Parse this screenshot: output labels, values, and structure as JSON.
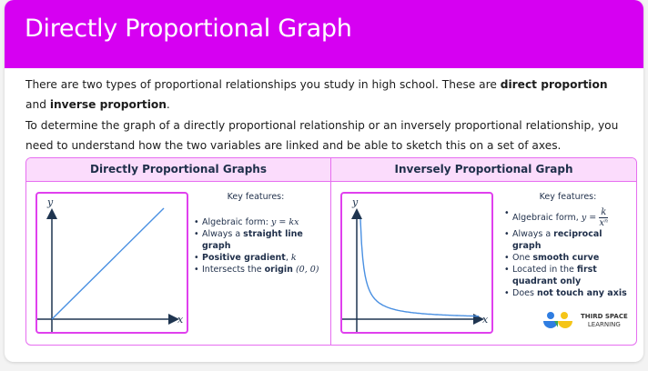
{
  "header": {
    "title": "Directly Proportional Graph"
  },
  "intro": [
    [
      {
        "t": "There are two types of proportional relationships you study in high school. These are "
      },
      {
        "t": "direct proportion",
        "b": true
      },
      {
        "t": " and "
      },
      {
        "t": "inverse proportion",
        "b": true
      },
      {
        "t": "."
      }
    ],
    [
      {
        "t": "To determine the graph of a directly proportional relationship or an inversely proportional relationship, you need to understand how the two variables are linked and be able to sketch this on a set of axes."
      }
    ]
  ],
  "direct": {
    "title": "Directly Proportional Graphs",
    "axis_x": "x",
    "axis_y": "y",
    "key_title": "Key features:",
    "features": [
      [
        {
          "t": "Algebraic form: "
        },
        {
          "t": "y = kx",
          "m": true
        }
      ],
      [
        {
          "t": "Always a "
        },
        {
          "t": "straight line graph",
          "b": true
        }
      ],
      [
        {
          "t": "Positive gradient",
          "b": true
        },
        {
          "t": ", "
        },
        {
          "t": "k",
          "m": true
        }
      ],
      [
        {
          "t": "Intersects the "
        },
        {
          "t": "origin",
          "b": true
        },
        {
          "t": " "
        },
        {
          "t": "(0, 0)",
          "m": true
        }
      ]
    ]
  },
  "inverse": {
    "title": "Inversely Proportional Graph",
    "axis_x": "x",
    "axis_y": "y",
    "key_title": "Key features:",
    "form_label": "Algebraic form, ",
    "form_lhs": "y =",
    "form_num": "k",
    "form_den": "xⁿ",
    "features": [
      [
        {
          "t": "Always a "
        },
        {
          "t": "reciprocal graph",
          "b": true
        }
      ],
      [
        {
          "t": "One "
        },
        {
          "t": "smooth curve",
          "b": true
        }
      ],
      [
        {
          "t": "Located in the "
        },
        {
          "t": "first quadrant only",
          "b": true
        }
      ],
      [
        {
          "t": "Does "
        },
        {
          "t": "not touch any axis",
          "b": true
        }
      ]
    ]
  },
  "logo": {
    "line1": "THIRD SPACE",
    "line2": "LEARNING"
  },
  "colors": {
    "header": "#d600f2",
    "border": "#e66ef0",
    "title_bg": "#fbdcfc",
    "curve": "#4a90e2",
    "axis": "#1f3550"
  }
}
